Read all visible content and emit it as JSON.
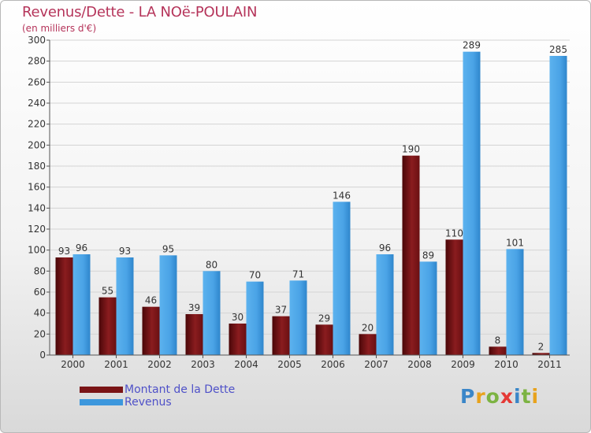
{
  "header": {
    "title": "Revenus/Dette - LA NOë-POULAIN",
    "subtitle": "(en milliers d'€)"
  },
  "legend": {
    "items": [
      {
        "label": "Montant de la Dette",
        "color": "#7a1416"
      },
      {
        "label": "Revenus",
        "color": "#3c97dd"
      }
    ]
  },
  "logo": {
    "text": "Proxiti"
  },
  "chart_data": {
    "type": "bar",
    "title": "Revenus/Dette - LA NOë-POULAIN",
    "ylabel": "(en milliers d'€)",
    "xlabel": "",
    "ylim": [
      0,
      300
    ],
    "yticks": [
      0,
      20,
      40,
      60,
      80,
      100,
      120,
      140,
      160,
      180,
      200,
      220,
      240,
      260,
      280,
      300
    ],
    "grid": true,
    "legend_position": "bottom-left",
    "categories": [
      "2000",
      "2001",
      "2002",
      "2003",
      "2004",
      "2005",
      "2006",
      "2007",
      "2008",
      "2009",
      "2010",
      "2011"
    ],
    "series": [
      {
        "name": "Montant de la Dette",
        "color": "#7a1416",
        "values": [
          93,
          55,
          46,
          39,
          30,
          37,
          29,
          20,
          190,
          110,
          8,
          2
        ]
      },
      {
        "name": "Revenus",
        "color": "#3c97dd",
        "values": [
          96,
          93,
          95,
          80,
          70,
          71,
          146,
          96,
          89,
          289,
          101,
          285
        ]
      }
    ]
  }
}
